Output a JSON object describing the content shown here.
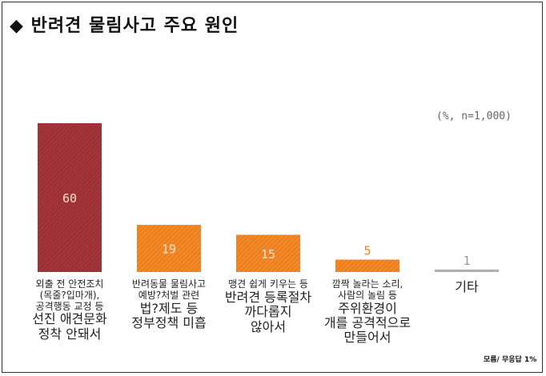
{
  "title": "◆ 반려견 물림사고 주요 원인",
  "unit_note": "(%, n=1,000)",
  "footnote": "모름/ 무응답 1%",
  "colors": {
    "primary": "#a3343a",
    "secondary": "#f07e1e",
    "other": "#b0b0b0"
  },
  "chart_data": {
    "type": "bar",
    "title": "반려견 물림사고 주요 원인",
    "ylabel": "%",
    "ylim": [
      0,
      60
    ],
    "grid": false,
    "values": [
      60,
      19,
      15,
      5,
      1
    ],
    "categories": [
      {
        "small": [
          "외출 전 안전조치",
          "(목줄?입마개),",
          "공격행동 교정 등"
        ],
        "big": [
          "선진 애견문화",
          "정착 안돼서"
        ]
      },
      {
        "small": [
          "반려동물 물림사고",
          "예방?처벌 관련"
        ],
        "big": [
          "법?제도 등",
          "정부정책 미흡"
        ]
      },
      {
        "small": [
          "맹견 쉽게 키우는 등"
        ],
        "big": [
          "반려견 등록절차",
          "까다롭지",
          "않아서"
        ]
      },
      {
        "small": [
          "깜짝 놀라는 소리,",
          "사람의 놀림 등"
        ],
        "big": [
          "주위환경이",
          "개를 공격적으로",
          "만들어서"
        ]
      },
      {
        "small": [],
        "big": [
          "기타"
        ]
      }
    ]
  }
}
